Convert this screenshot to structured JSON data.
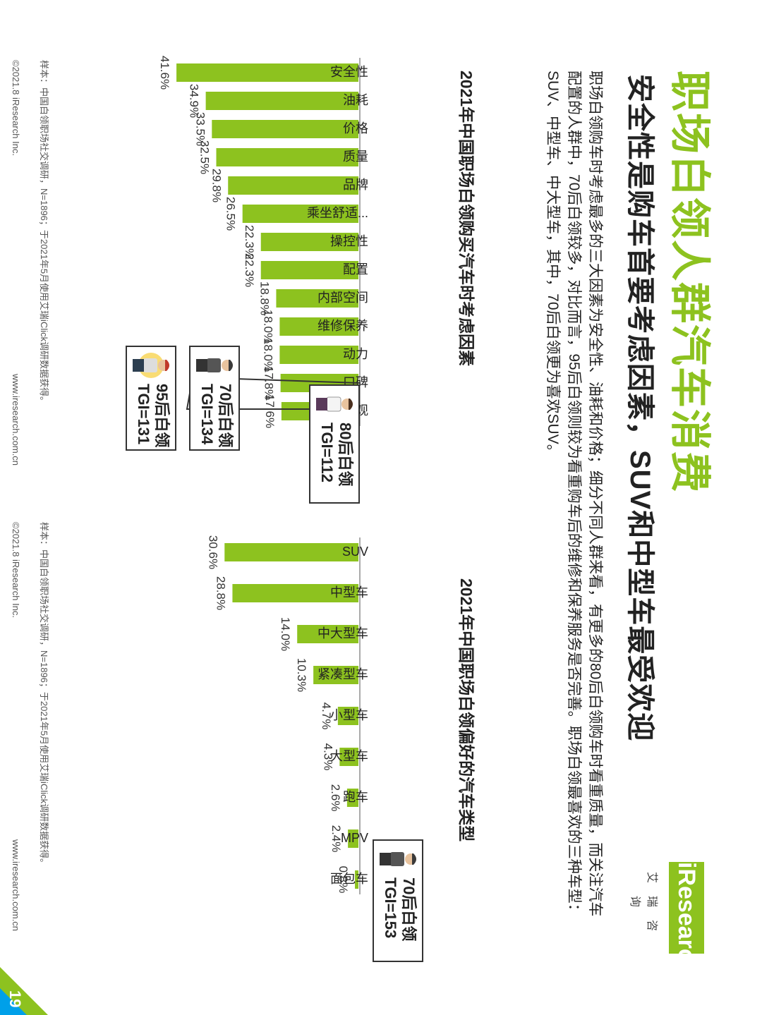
{
  "header": {
    "title": "职场白领人群汽车消费",
    "subtitle": "安全性是购车首要考虑因素，SUV和中型车最受欢迎",
    "description": "职场白领购车时考虑最多的三大因素为安全性、油耗和价格；细分不同人群来看，有更多的80后白领购车时看重质量，而关注汽车配置的人群中，70后白领较多，对比而言，95后白领则较为看重购车后的维修和保养服务是否完善。职场白领最喜欢的三种车型：SUV、中型车、中大型车，其中，70后白领更为喜欢SUV。"
  },
  "logo": {
    "brand": "iResearch",
    "cn": "艾瑞咨询"
  },
  "page_number": "19",
  "colors": {
    "bar": "#8dc21f",
    "title": "#8dc21f",
    "accent": "#00a0e9"
  },
  "left_chart": {
    "note_sample": "样本：中国白领职场社交调研，N=1896；于2021年5月使用艾瑞iClick调研数据获得。",
    "copyright": "©2021.8 iResearch Inc.",
    "website": "www.iresearch.com.cn",
    "callouts": [
      {
        "line1": "80后白领",
        "line2": "TGI=112"
      },
      {
        "line1": "70后白领",
        "line2": "TGI=134"
      },
      {
        "line1": "95后白领",
        "line2": "TGI=131"
      }
    ]
  },
  "right_chart": {
    "note_sample": "样本：中国白领职场社交调研，N=1896；于2021年5月使用艾瑞iClick调研数据获得。",
    "copyright": "©2021.8 iResearch Inc.",
    "website": "www.iresearch.com.cn",
    "callouts": [
      {
        "line1": "70后白领",
        "line2": "TGI=153"
      }
    ]
  },
  "chart_data": [
    {
      "type": "bar",
      "title": "2021年中国职场白领购买汽车时考虑因素",
      "categories": [
        "安全性",
        "油耗",
        "价格",
        "质量",
        "品牌",
        "乘坐舒适...",
        "操控性",
        "配置",
        "内部空间",
        "维修保养",
        "动力",
        "口碑",
        "外观"
      ],
      "values": [
        41.6,
        34.9,
        33.5,
        32.5,
        29.8,
        26.5,
        22.3,
        22.3,
        18.8,
        18.0,
        18.0,
        17.8,
        17.6
      ],
      "labels": [
        "41.6%",
        "34.9%",
        "33.5%",
        "32.5%",
        "29.8%",
        "26.5%",
        "22.3%",
        "22.3%",
        "18.8%",
        "18.0%",
        "18.0%",
        "17.8%",
        "17.6%"
      ],
      "unit": "%",
      "xlim": [
        0,
        45
      ]
    },
    {
      "type": "bar",
      "title": "2021年中国职场白领偏好的汽车类型",
      "categories": [
        "SUV",
        "中型车",
        "中大型车",
        "紧凑型车",
        "小型车",
        "大型车",
        "跑车",
        "MPV",
        "面包车"
      ],
      "values": [
        30.6,
        28.8,
        14.0,
        10.3,
        4.7,
        4.3,
        2.6,
        2.4,
        0.8
      ],
      "labels": [
        "30.6%",
        "28.8%",
        "14.0%",
        "10.3%",
        "4.7%",
        "4.3%",
        "2.6%",
        "2.4%",
        "0.8%"
      ],
      "unit": "%",
      "xlim": [
        0,
        45
      ]
    }
  ]
}
